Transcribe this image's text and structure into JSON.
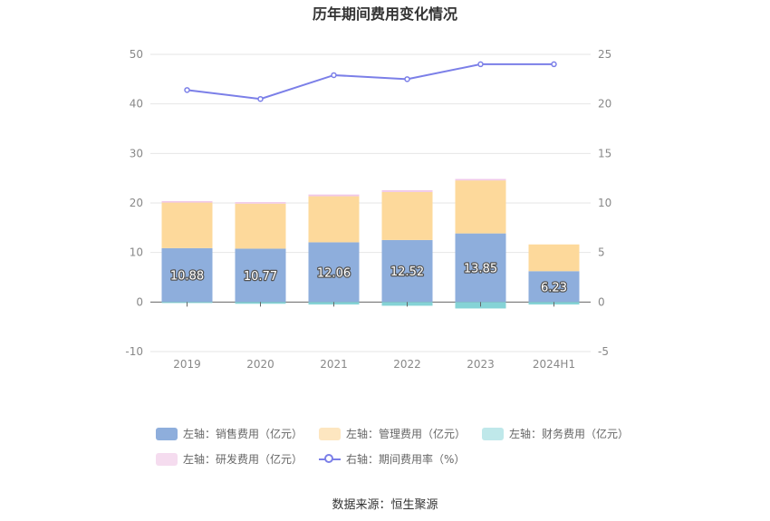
{
  "chart_data": {
    "type": "bar",
    "title": "历年期间费用变化情况",
    "categories": [
      "2019",
      "2020",
      "2021",
      "2022",
      "2023",
      "2024H1"
    ],
    "left_axis": {
      "ylim": [
        -10,
        50
      ],
      "ticks": [
        "-10",
        "0",
        "10",
        "20",
        "30",
        "40",
        "50"
      ]
    },
    "right_axis": {
      "ylim": [
        -5,
        25
      ],
      "ticks": [
        "-5",
        "0",
        "5",
        "10",
        "15",
        "20",
        "25"
      ]
    },
    "series": [
      {
        "name": "左轴：销售费用（亿元）",
        "type": "bar",
        "axis": "left",
        "color": "#8eaedc",
        "values": [
          10.88,
          10.77,
          12.06,
          12.52,
          13.85,
          6.23
        ],
        "labels": [
          "10.88",
          "10.77",
          "12.06",
          "12.52",
          "13.85",
          "6.23"
        ]
      },
      {
        "name": "左轴：管理费用（亿元）",
        "type": "bar",
        "axis": "left",
        "color": "#fdd99b",
        "values": [
          9.2,
          9.1,
          9.3,
          9.7,
          10.7,
          5.4
        ]
      },
      {
        "name": "左轴：财务费用（亿元）",
        "type": "bar",
        "axis": "left",
        "color": "#85d3d6",
        "values": [
          -0.2,
          -0.35,
          -0.5,
          -0.75,
          -1.3,
          -0.5
        ]
      },
      {
        "name": "左轴：研发费用（亿元）",
        "type": "bar",
        "axis": "left",
        "color": "#f0c8e8",
        "values": [
          0.3,
          0.3,
          0.35,
          0.35,
          0.3,
          0.0
        ]
      },
      {
        "name": "右轴：期间费用率（%）",
        "type": "line",
        "axis": "right",
        "color": "#7b7fe8",
        "values": [
          21.4,
          20.5,
          22.9,
          22.5,
          24.0,
          24.0
        ]
      }
    ],
    "grid": true,
    "legend_position": "bottom"
  },
  "source": "数据来源：恒生聚源"
}
